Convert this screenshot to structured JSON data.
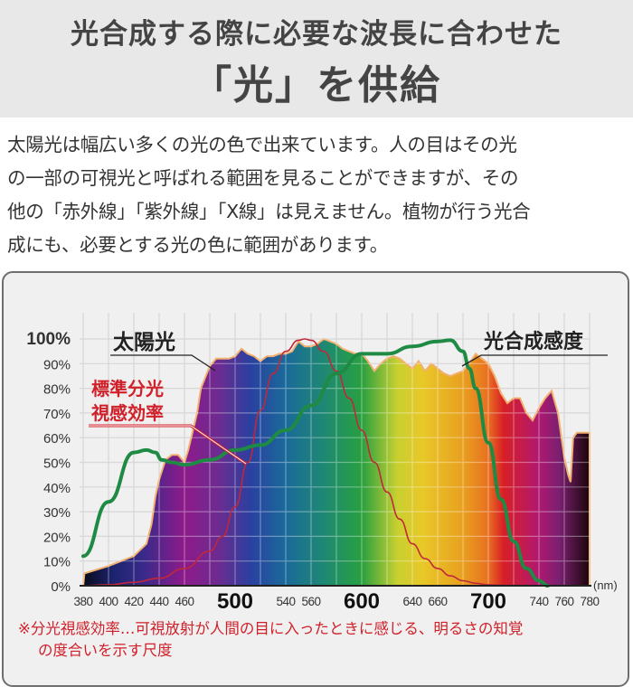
{
  "header": {
    "title_line1": "光合成する際に必要な波長に合わせた",
    "title_line2": "「光」を供給"
  },
  "intro": {
    "lines": [
      "太陽光は幅広い多くの光の色で出来ています。人の目はその光",
      "の一部の可視光と呼ばれる範囲を見ることができますが、その",
      "他の「赤外線」「紫外線」「X線」は見えません。植物が行う光合",
      "成にも、必要とする光の色に範囲があります。"
    ]
  },
  "footnote": {
    "line1": "※分光視感効率…可視放射が人間の目に入ったときに感じる、明るさの知覚",
    "line2": "の度合いを示す尺度"
  },
  "colors": {
    "photosynthesis_line": "#1f8a43",
    "luminosity_line": "#c0283a",
    "label_red": "#d0202a",
    "grid": "#bdbdbd",
    "text_dark": "#222222"
  },
  "chart_data": {
    "type": "area",
    "title": "",
    "xlabel": "(nm)",
    "ylabel": "",
    "xlim": [
      380,
      780
    ],
    "ylim": [
      0,
      100
    ],
    "grid": true,
    "x_tick_labels": [
      {
        "x": 380,
        "label": "380",
        "major": false
      },
      {
        "x": 400,
        "label": "400",
        "major": false
      },
      {
        "x": 420,
        "label": "420",
        "major": false
      },
      {
        "x": 440,
        "label": "440",
        "major": false
      },
      {
        "x": 460,
        "label": "460",
        "major": false
      },
      {
        "x": 500,
        "label": "500",
        "major": true
      },
      {
        "x": 540,
        "label": "540",
        "major": false
      },
      {
        "x": 560,
        "label": "560",
        "major": false
      },
      {
        "x": 600,
        "label": "600",
        "major": true
      },
      {
        "x": 640,
        "label": "640",
        "major": false
      },
      {
        "x": 660,
        "label": "660",
        "major": false
      },
      {
        "x": 700,
        "label": "700",
        "major": true
      },
      {
        "x": 740,
        "label": "740",
        "major": false
      },
      {
        "x": 760,
        "label": "760",
        "major": false
      },
      {
        "x": 780,
        "label": "780",
        "major": false
      }
    ],
    "y_tick_labels": [
      "0%",
      "10%",
      "20%",
      "30%",
      "40%",
      "50%",
      "60%",
      "70%",
      "80%",
      "90%",
      "100%"
    ],
    "annotations": [
      {
        "text": "太陽光",
        "series": "sunlight",
        "color": "#222222"
      },
      {
        "text": "標準分光",
        "series": "luminosity",
        "color": "#d0202a"
      },
      {
        "text": "視感効率",
        "series": "luminosity",
        "color": "#d0202a"
      },
      {
        "text": "光合成感度",
        "series": "photosynthesis",
        "color": "#222222"
      }
    ],
    "series": [
      {
        "name": "太陽光",
        "key": "sunlight",
        "style": "spectrum-filled-area",
        "x": [
          380,
          381,
          400,
          420,
          430,
          434,
          437,
          440,
          445,
          450,
          455,
          460,
          463,
          470,
          473,
          480,
          485,
          490,
          495,
          500,
          505,
          510,
          515,
          520,
          525,
          530,
          535,
          540,
          545,
          550,
          555,
          560,
          565,
          570,
          575,
          580,
          585,
          590,
          595,
          600,
          605,
          610,
          615,
          620,
          625,
          630,
          635,
          640,
          645,
          650,
          655,
          660,
          665,
          670,
          675,
          680,
          685,
          690,
          695,
          700,
          705,
          710,
          715,
          720,
          725,
          730,
          735,
          740,
          745,
          750,
          755,
          760,
          763,
          765,
          767,
          770,
          772,
          775,
          780
        ],
        "values": [
          0,
          5,
          8,
          12,
          17,
          25,
          36,
          43,
          51,
          53,
          53,
          50,
          55,
          70,
          80,
          89,
          92,
          92,
          92,
          93,
          96,
          94,
          93,
          91,
          93,
          93,
          94,
          94,
          95,
          99,
          97,
          97,
          98,
          100,
          99,
          98,
          96,
          95,
          94,
          94,
          91,
          87,
          90,
          92,
          93,
          92,
          90,
          88,
          91,
          87,
          90,
          88,
          86,
          85,
          86,
          87,
          90,
          94,
          92,
          90,
          85,
          78,
          74,
          76,
          76,
          70,
          67,
          72,
          76,
          79,
          70,
          52,
          45,
          42,
          60,
          62,
          62,
          62,
          62
        ]
      },
      {
        "name": "標準分光視感効率",
        "key": "luminosity",
        "style": "line",
        "x": [
          380,
          400,
          420,
          440,
          460,
          480,
          490,
          500,
          510,
          520,
          530,
          540,
          550,
          555,
          560,
          570,
          580,
          590,
          600,
          610,
          620,
          630,
          640,
          650,
          660,
          670,
          680,
          690,
          700,
          720,
          740,
          780
        ],
        "values": [
          0,
          0.4,
          1.4,
          3,
          7,
          14,
          20,
          32,
          50,
          71,
          86,
          95,
          99.5,
          100,
          99.5,
          95,
          87,
          76,
          63,
          50,
          38,
          27,
          17,
          11,
          7,
          4,
          2,
          1,
          0.4,
          0.1,
          0,
          0
        ]
      },
      {
        "name": "光合成感度",
        "key": "photosynthesis",
        "style": "line",
        "x": [
          380,
          400,
          420,
          430,
          437,
          442,
          450,
          460,
          480,
          500,
          520,
          540,
          560,
          580,
          600,
          620,
          640,
          660,
          670,
          680,
          685,
          690,
          700,
          710,
          720,
          730,
          740,
          747
        ],
        "values": [
          12,
          34,
          54,
          55,
          54,
          51,
          50,
          49,
          51,
          55,
          57,
          63,
          73,
          86,
          94,
          94,
          97,
          99,
          99.5,
          95,
          88,
          80,
          58,
          35,
          18,
          7,
          2,
          0
        ]
      }
    ]
  }
}
